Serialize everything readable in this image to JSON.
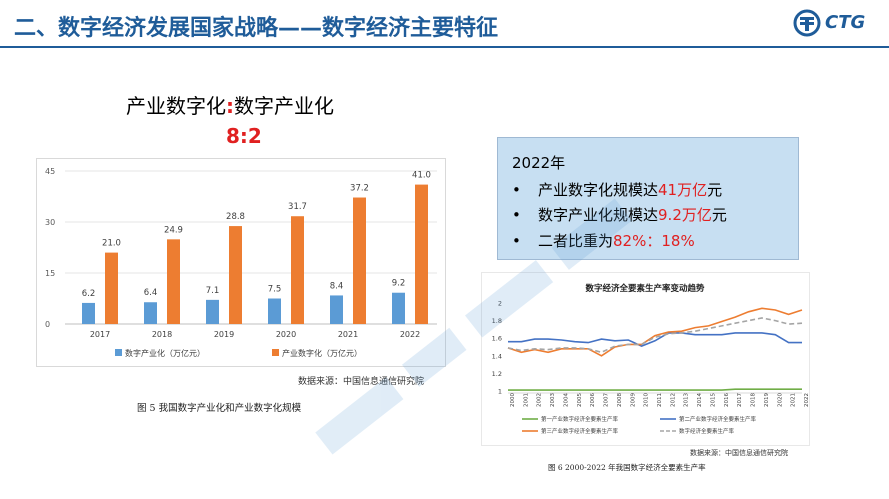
{
  "header": {
    "title": "二、数字经济发展国家战略——数字经济主要特征",
    "logo_text": "CTG"
  },
  "ratio": {
    "left": "产业数字化",
    "colon": ":",
    "right": "数字产业化",
    "value": "8:2"
  },
  "info_box": {
    "year": "2022年",
    "bullet": "•",
    "line1_pre": "产业数字化规模达",
    "line1_val": "41万亿",
    "line1_post": "元",
    "line2_pre": "数字产业化规模达",
    "line2_val": "9.2万亿",
    "line2_post": "元",
    "line3_pre": "二者比重为",
    "line3_val": "82%：18%"
  },
  "figure1": {
    "source": "数据来源：中国信息通信研究院",
    "caption": "图 5  我国数字产业化和产业数字化规模"
  },
  "figure2": {
    "source": "数据来源：中国信息通信研究院",
    "caption": "图 6  2000-2022 年我国数字经济全要素生产率"
  },
  "chart_data": [
    {
      "type": "bar",
      "title": "",
      "categories": [
        "2017",
        "2018",
        "2019",
        "2020",
        "2021",
        "2022"
      ],
      "series": [
        {
          "name": "数字产业化（万亿元）",
          "color": "#5b9bd5",
          "values": [
            6.2,
            6.4,
            7.1,
            7.5,
            8.4,
            9.2
          ]
        },
        {
          "name": "产业数字化（万亿元）",
          "color": "#ed7d31",
          "values": [
            21.0,
            24.9,
            28.8,
            31.7,
            37.2,
            41.0
          ]
        }
      ],
      "ylim": [
        0,
        45
      ],
      "yticks": [
        "0",
        "15",
        "30",
        "45"
      ],
      "value_labels": [
        [
          "6.2",
          "6.4",
          "7.1",
          "7.5",
          "8.4",
          "9.2"
        ],
        [
          "21.0",
          "24.9",
          "28.8",
          "31.7",
          "37.2",
          "41.0"
        ]
      ],
      "legend_position": "bottom"
    },
    {
      "type": "line",
      "title": "数字经济全要素生产率变动趋势",
      "x": [
        "2000",
        "2001",
        "2002",
        "2003",
        "2004",
        "2005",
        "2006",
        "2007",
        "2008",
        "2009",
        "2010",
        "2011",
        "2012",
        "2013",
        "2014",
        "2015",
        "2016",
        "2017",
        "2018",
        "2019",
        "2020",
        "2021",
        "2022"
      ],
      "ylim": [
        1,
        2
      ],
      "yticks": [
        "1",
        "1.2",
        "1.4",
        "1.6",
        "1.8",
        "2"
      ],
      "series": [
        {
          "name": "第一产业数字经济全要素生产率",
          "color": "#70ad47",
          "dash": false,
          "values": [
            1.01,
            1.01,
            1.01,
            1.01,
            1.01,
            1.01,
            1.01,
            1.01,
            1.01,
            1.01,
            1.01,
            1.01,
            1.01,
            1.01,
            1.01,
            1.01,
            1.01,
            1.02,
            1.02,
            1.02,
            1.02,
            1.02,
            1.02
          ]
        },
        {
          "name": "第二产业数字经济全要素生产率",
          "color": "#4472c4",
          "dash": false,
          "values": [
            1.56,
            1.56,
            1.59,
            1.59,
            1.58,
            1.56,
            1.55,
            1.59,
            1.57,
            1.58,
            1.51,
            1.57,
            1.66,
            1.66,
            1.64,
            1.64,
            1.64,
            1.66,
            1.66,
            1.66,
            1.64,
            1.55,
            1.55
          ]
        },
        {
          "name": "第三产业数字经济全要素生产率",
          "color": "#ed7d31",
          "dash": false,
          "values": [
            1.49,
            1.44,
            1.47,
            1.44,
            1.48,
            1.48,
            1.48,
            1.4,
            1.5,
            1.53,
            1.53,
            1.63,
            1.67,
            1.68,
            1.72,
            1.74,
            1.79,
            1.84,
            1.9,
            1.94,
            1.92,
            1.87,
            1.92
          ]
        },
        {
          "name": "数字经济全要素生产率",
          "color": "#a5a5a5",
          "dash": true,
          "values": [
            1.49,
            1.46,
            1.48,
            1.47,
            1.49,
            1.49,
            1.48,
            1.44,
            1.51,
            1.53,
            1.53,
            1.61,
            1.65,
            1.66,
            1.68,
            1.71,
            1.74,
            1.77,
            1.8,
            1.83,
            1.8,
            1.76,
            1.77
          ]
        }
      ],
      "legend_position": "bottom"
    }
  ]
}
